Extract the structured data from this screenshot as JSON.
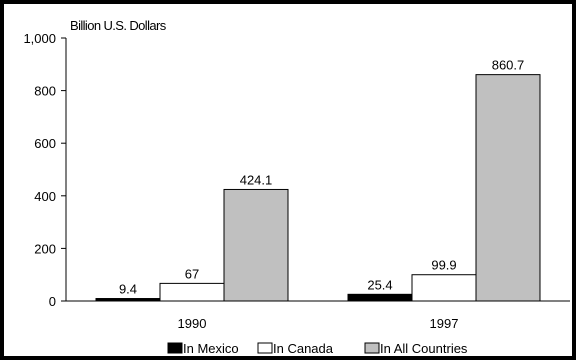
{
  "chart_data": {
    "type": "bar",
    "ylabel": "Billion U.S. Dollars",
    "ylim": [
      0,
      1000
    ],
    "yticks": [
      "0",
      "200",
      "400",
      "600",
      "800",
      "1,000"
    ],
    "categories": [
      "1990",
      "1997"
    ],
    "grid": false,
    "legend_position": "bottom",
    "series": [
      {
        "name": "In Mexico",
        "values": [
          9.4,
          25.4
        ],
        "labels": [
          "9.4",
          "25.4"
        ],
        "color": "#000000"
      },
      {
        "name": "In Canada",
        "values": [
          67,
          99.9
        ],
        "labels": [
          "67",
          "99.9"
        ],
        "color": "#ffffff"
      },
      {
        "name": "In All Countries",
        "values": [
          424.1,
          860.7
        ],
        "labels": [
          "424.1",
          "860.7"
        ],
        "color": "#c0c0c0"
      }
    ]
  }
}
